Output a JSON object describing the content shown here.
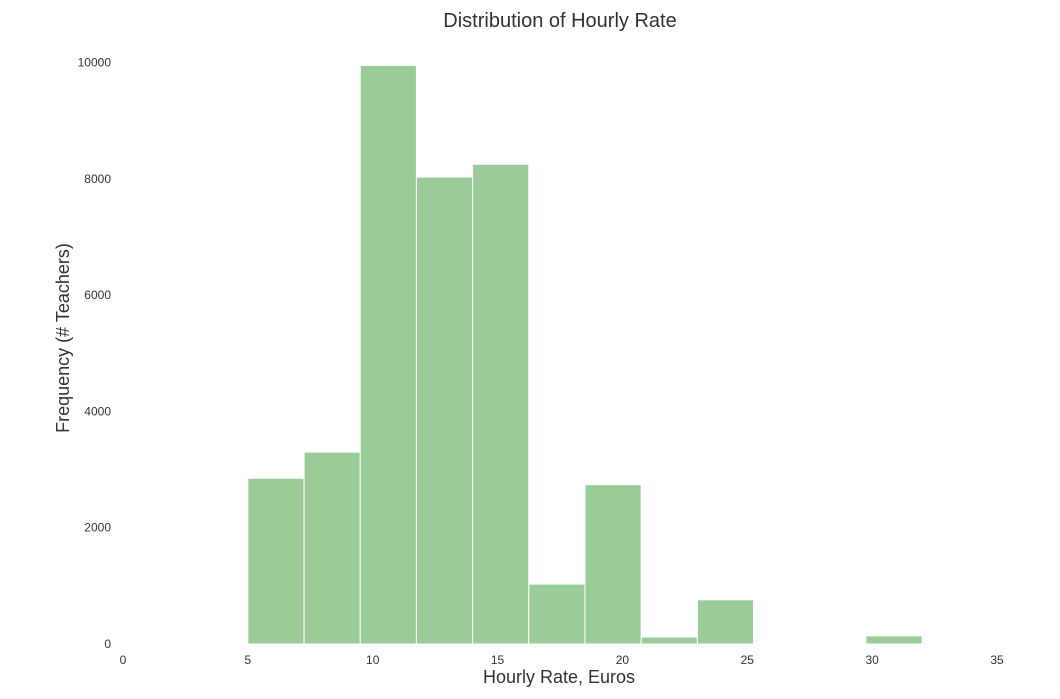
{
  "chart_data": {
    "type": "bar",
    "title": "Distribution of Hourly Rate",
    "xlabel": "Hourly Rate, Euros",
    "ylabel": "Frequency (# Teachers)",
    "xlim": [
      0,
      35
    ],
    "ylim": [
      0,
      10000
    ],
    "xticks": [
      "0",
      "5",
      "10",
      "15",
      "20",
      "25",
      "30",
      "35"
    ],
    "yticks": [
      "0",
      "2000",
      "4000",
      "6000",
      "8000",
      "10000"
    ],
    "grid": false,
    "bins": [
      {
        "x0": 5.0,
        "x1": 7.25,
        "value": 2850
      },
      {
        "x0": 7.25,
        "x1": 9.5,
        "value": 3300
      },
      {
        "x0": 9.5,
        "x1": 11.75,
        "value": 9950
      },
      {
        "x0": 11.75,
        "x1": 14.0,
        "value": 8030
      },
      {
        "x0": 14.0,
        "x1": 16.25,
        "value": 8250
      },
      {
        "x0": 16.25,
        "x1": 18.5,
        "value": 1030
      },
      {
        "x0": 18.5,
        "x1": 20.75,
        "value": 2740
      },
      {
        "x0": 20.75,
        "x1": 23.0,
        "value": 120
      },
      {
        "x0": 23.0,
        "x1": 25.25,
        "value": 760
      },
      {
        "x0": 25.25,
        "x1": 27.5,
        "value": 8
      },
      {
        "x0": 27.5,
        "x1": 29.75,
        "value": 8
      },
      {
        "x0": 29.75,
        "x1": 32.0,
        "value": 140
      },
      {
        "x0": 32.0,
        "x1": 34.25,
        "value": 0
      }
    ],
    "bar_color": "#9ACC9A"
  }
}
